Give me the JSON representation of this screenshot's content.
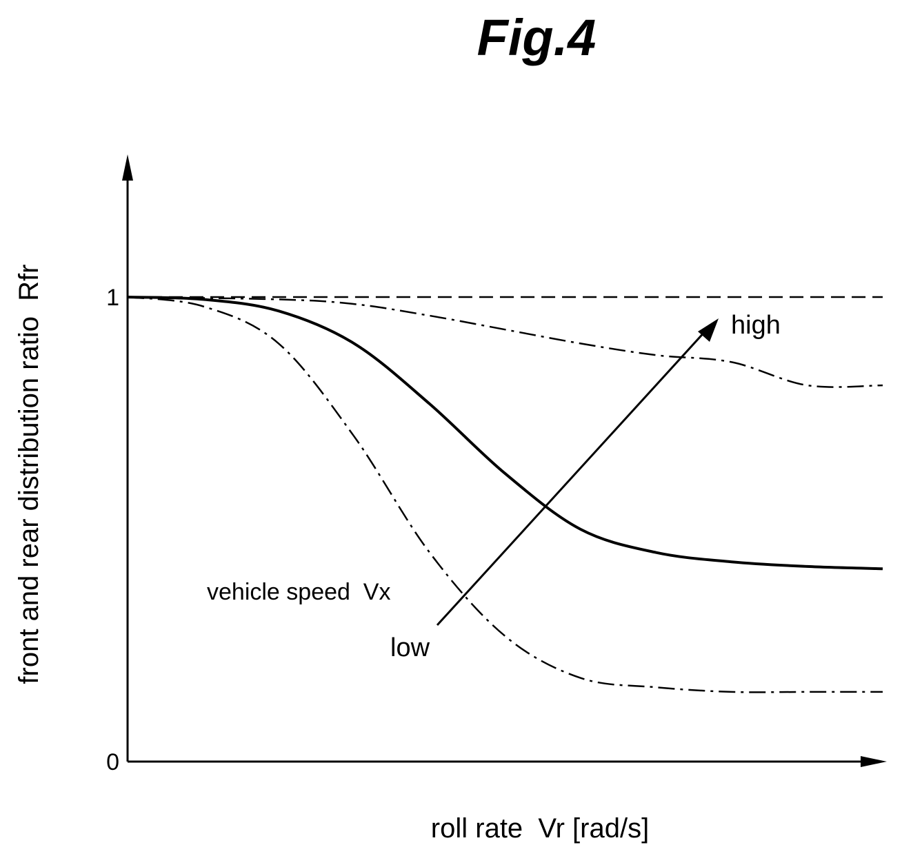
{
  "chart_data": {
    "type": "line",
    "title": "Fig.4",
    "xlabel": "roll rate  Vr [rad/s]",
    "ylabel": "front and rear distribution ratio  Rfr",
    "y_ticks": [
      "0",
      "1"
    ],
    "xlim": [
      0,
      10
    ],
    "ylim": [
      0,
      1
    ],
    "grid": false,
    "series": [
      {
        "style": "dashed",
        "x": [
          0,
          10
        ],
        "y": [
          1.0,
          1.0
        ]
      },
      {
        "style": "dash-dot",
        "x": [
          0,
          2.0,
          3.0,
          4.0,
          5.0,
          6.0,
          7.0,
          8.0,
          9.0,
          10.0
        ],
        "y": [
          1.0,
          0.995,
          0.985,
          0.96,
          0.93,
          0.9,
          0.875,
          0.86,
          0.81,
          0.81
        ]
      },
      {
        "style": "solid",
        "x": [
          0,
          1.0,
          2.0,
          3.0,
          4.0,
          5.0,
          6.0,
          7.0,
          8.0,
          9.0,
          10.0
        ],
        "y": [
          1.0,
          0.995,
          0.97,
          0.9,
          0.77,
          0.62,
          0.5,
          0.45,
          0.43,
          0.42,
          0.415
        ]
      },
      {
        "style": "dash-dot",
        "x": [
          0,
          1.0,
          2.0,
          3.0,
          4.0,
          5.0,
          6.0,
          7.0,
          8.0,
          9.0,
          10.0
        ],
        "y": [
          1.0,
          0.98,
          0.9,
          0.7,
          0.45,
          0.27,
          0.18,
          0.16,
          0.15,
          0.15,
          0.15
        ]
      }
    ],
    "annotations": {
      "arrow_high": "high",
      "arrow_low": "low",
      "arrow_label": "vehicle speed  Vx"
    }
  }
}
